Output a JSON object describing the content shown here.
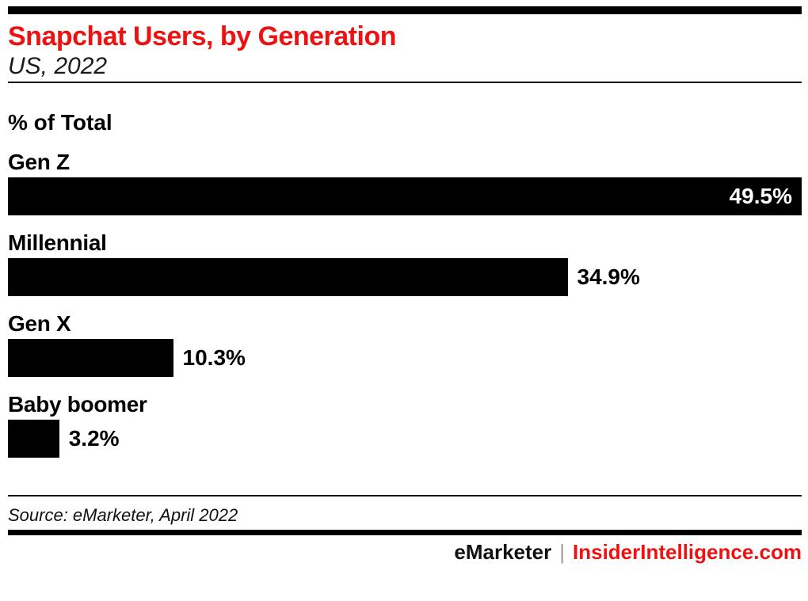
{
  "header": {
    "title": "Snapchat Users, by Generation",
    "subtitle": "US, 2022"
  },
  "chart_data": {
    "type": "bar",
    "orientation": "horizontal",
    "title": "Snapchat Users, by Generation",
    "subtitle": "US, 2022",
    "unit_label": "% of Total",
    "categories": [
      "Gen Z",
      "Millennial",
      "Gen X",
      "Baby boomer"
    ],
    "values": [
      49.5,
      34.9,
      10.3,
      3.2
    ],
    "value_labels": [
      "49.5%",
      "34.9%",
      "10.3%",
      "3.2%"
    ],
    "xlim": [
      0,
      49.5
    ],
    "grid": false,
    "legend": false,
    "bar_color": "#000000",
    "value_inside_threshold": 0.8
  },
  "footer": {
    "source": "Source: eMarketer, April 2022",
    "brand_left": "eMarketer",
    "brand_separator": "|",
    "brand_right": "InsiderIntelligence.com"
  },
  "colors": {
    "accent_red": "#ee1111",
    "bar_black": "#000000",
    "separator_gray": "#9b9b9b"
  }
}
